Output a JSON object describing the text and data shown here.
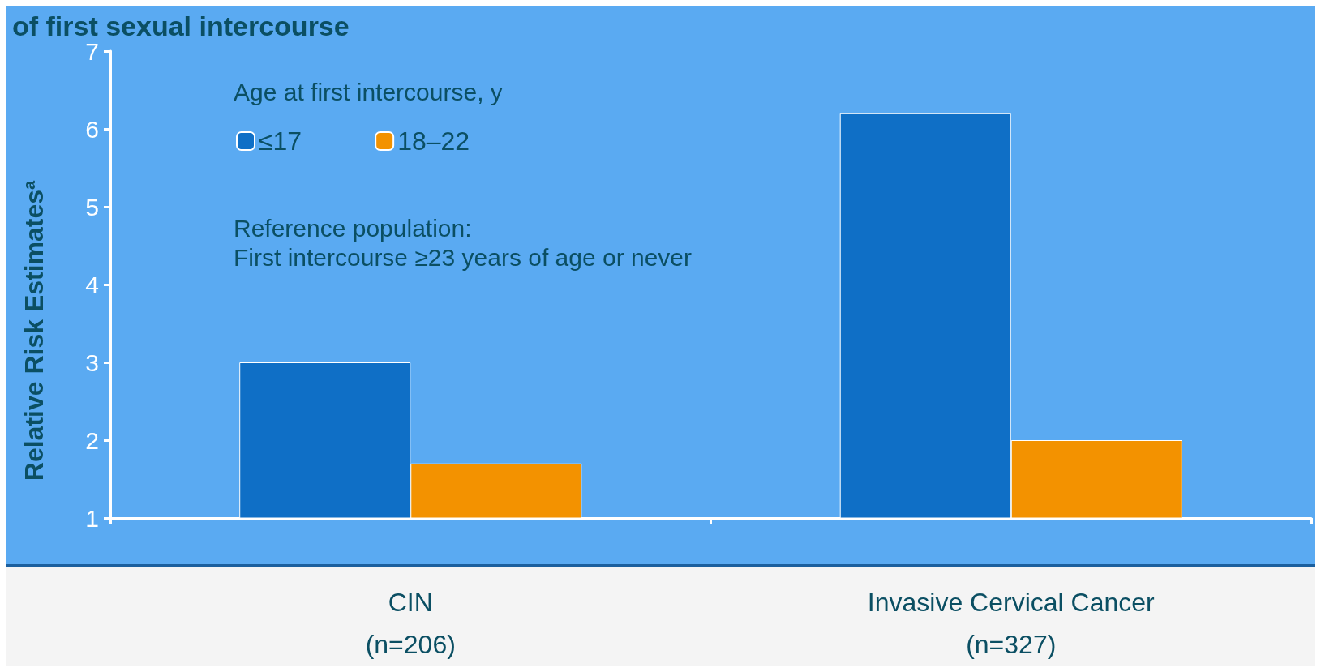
{
  "chart_data": {
    "type": "bar",
    "title": "of first sexual intercourse",
    "ylabel": "Relative Risk Estimates$^{a}$",
    "legend_title": "Age at first intercourse, y",
    "annotations": [
      "Reference population:",
      "First intercourse ≥23 years of age or never"
    ],
    "categories": [
      "CIN\n(n=206)",
      "Invasive Cervical Cancer\n(n=327)"
    ],
    "series": [
      {
        "name": "≤17",
        "color": "#0f6fc6",
        "values": [
          3,
          6.2
        ]
      },
      {
        "name": "18–22",
        "color": "#f39200",
        "values": [
          1.7,
          2
        ]
      }
    ],
    "ylim": [
      1,
      7
    ],
    "yticks": [
      1,
      2,
      3,
      4,
      5,
      6,
      7
    ],
    "grid": false,
    "legend": "top left"
  }
}
